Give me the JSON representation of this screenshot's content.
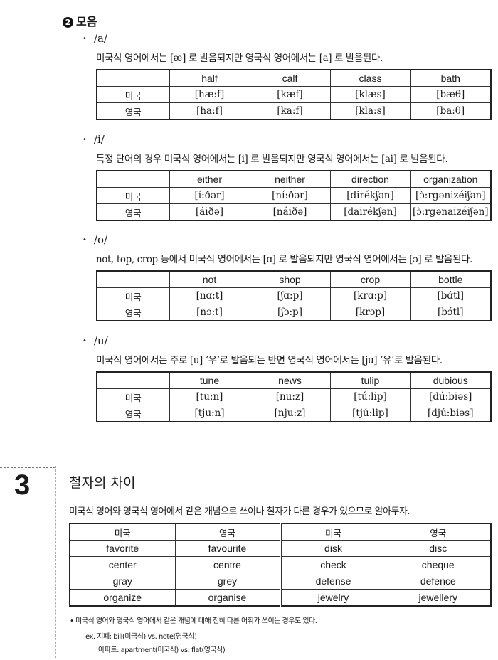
{
  "vowels": {
    "heading_marker": "2",
    "heading": "모음",
    "sections": [
      {
        "label": "/a/",
        "desc": "미국식 영어에서는 [æ] 로 발음되지만 영국식 영어에서는 [a] 로 발음된다.",
        "words": [
          "half",
          "calf",
          "class",
          "bath"
        ],
        "us_label": "미국",
        "uk_label": "영국",
        "us": [
          "[hæ:f]",
          "[kæf]",
          "[klæs]",
          "[bæθ]"
        ],
        "uk": [
          "[ha:f]",
          "[ka:f]",
          "[kla:s]",
          "[ba:θ]"
        ]
      },
      {
        "label": "/i/",
        "desc": "특정 단어의 경우 미국식 영어에서는 [i] 로 발음되지만 영국식 영어에서는 [ai] 로 발음된다.",
        "words": [
          "either",
          "neither",
          "direction",
          "organization"
        ],
        "us_label": "미국",
        "uk_label": "영국",
        "us": [
          "[í:ðər]",
          "[ní:ðər]",
          "[dirékʃən]",
          "[ɔ̀:rgənizéiʃən]"
        ],
        "uk": [
          "[áiðə]",
          "[náiðə]",
          "[dairékʃən]",
          "[ɔ̀:rgənaizéiʃən]"
        ]
      },
      {
        "label": "/o/",
        "desc": "not, top, crop 등에서 미국식 영어에서는 [ɑ] 로 발음되지만 영국식 영어에서는 [ɔ] 로 발음된다.",
        "words": [
          "not",
          "shop",
          "crop",
          "bottle"
        ],
        "us_label": "미국",
        "uk_label": "영국",
        "us": [
          "[nɑ:t]",
          "[ʃɑ:p]",
          "[krɑ:p]",
          "[bɑ́tl]"
        ],
        "uk": [
          "[nɔ:t]",
          "[ʃɔ:p]",
          "[krɔp]",
          "[bɔ́tl]"
        ]
      },
      {
        "label": "/u/",
        "desc": "미국식 영어에서는 주로 [u] ‘우’로 발음되는 반면 영국식 영어에서는 [ju] ‘유’로 발음된다.",
        "words": [
          "tune",
          "news",
          "tulip",
          "dubious"
        ],
        "us_label": "미국",
        "uk_label": "영국",
        "us": [
          "[tu:n]",
          "[nu:z]",
          "[tú:lip]",
          "[dú:biəs]"
        ],
        "uk": [
          "[tju:n]",
          "[nju:z]",
          "[tjú:lip]",
          "[djú:biəs]"
        ]
      }
    ]
  },
  "spelling": {
    "number": "3",
    "title": "철자의 차이",
    "desc": "미국식 영어와 영국식 영어에서 같은 개념으로 쓰이나 철자가 다른 경우가 있으므로 알아두자.",
    "headers": [
      "미국",
      "영국",
      "미국",
      "영국"
    ],
    "rows": [
      [
        "favorite",
        "favourite",
        "disk",
        "disc"
      ],
      [
        "center",
        "centre",
        "check",
        "cheque"
      ],
      [
        "gray",
        "grey",
        "defense",
        "defence"
      ],
      [
        "organize",
        "organise",
        "jewelry",
        "jewellery"
      ]
    ],
    "note": "• 미국식 영어와 영국식 영어에서 같은 개념에 대해 전혀 다른 어휘가 쓰이는 경우도 있다.",
    "example1": "ex. 지폐: bill(미국식) vs. note(영국식)",
    "example2": "아파트: apartment(미국식) vs. flat(영국식)"
  }
}
